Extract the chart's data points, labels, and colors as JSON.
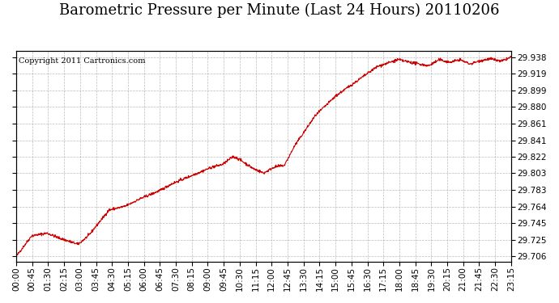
{
  "title": "Barometric Pressure per Minute (Last 24 Hours) 20110206",
  "copyright": "Copyright 2011 Cartronics.com",
  "line_color": "#cc0000",
  "background_color": "#ffffff",
  "plot_bg_color": "#ffffff",
  "grid_color": "#aaaaaa",
  "yticks": [
    29.706,
    29.725,
    29.745,
    29.764,
    29.783,
    29.803,
    29.822,
    29.841,
    29.861,
    29.88,
    29.899,
    29.919,
    29.938
  ],
  "ylim": [
    29.7,
    29.945
  ],
  "xtick_labels": [
    "00:00",
    "00:45",
    "01:30",
    "02:15",
    "03:00",
    "03:45",
    "04:30",
    "05:15",
    "06:00",
    "06:45",
    "07:30",
    "08:15",
    "09:00",
    "09:45",
    "10:30",
    "11:15",
    "12:00",
    "12:45",
    "13:30",
    "14:15",
    "15:00",
    "15:45",
    "16:30",
    "17:15",
    "18:00",
    "18:45",
    "19:30",
    "20:15",
    "21:00",
    "21:45",
    "22:30",
    "23:15"
  ],
  "title_fontsize": 13,
  "tick_fontsize": 7.5,
  "copyright_fontsize": 7,
  "waypoints_x": [
    0,
    45,
    90,
    120,
    150,
    180,
    210,
    240,
    270,
    315,
    360,
    390,
    420,
    450,
    480,
    510,
    540,
    570,
    600,
    630,
    645,
    660,
    675,
    690,
    720,
    750,
    780,
    810,
    870,
    930,
    990,
    1050,
    1110,
    1170,
    1200,
    1230,
    1260,
    1290,
    1320,
    1350,
    1380,
    1410,
    1439
  ],
  "waypoints_y": [
    29.706,
    29.73,
    29.733,
    29.728,
    29.724,
    29.72,
    29.73,
    29.745,
    29.76,
    29.764,
    29.773,
    29.778,
    29.783,
    29.79,
    29.795,
    29.8,
    29.805,
    29.81,
    29.813,
    29.822,
    29.82,
    29.816,
    29.812,
    29.808,
    29.803,
    29.81,
    29.812,
    29.835,
    29.87,
    29.893,
    29.91,
    29.927,
    29.935,
    29.93,
    29.928,
    29.935,
    29.932,
    29.935,
    29.93,
    29.934,
    29.936,
    29.933,
    29.938
  ]
}
